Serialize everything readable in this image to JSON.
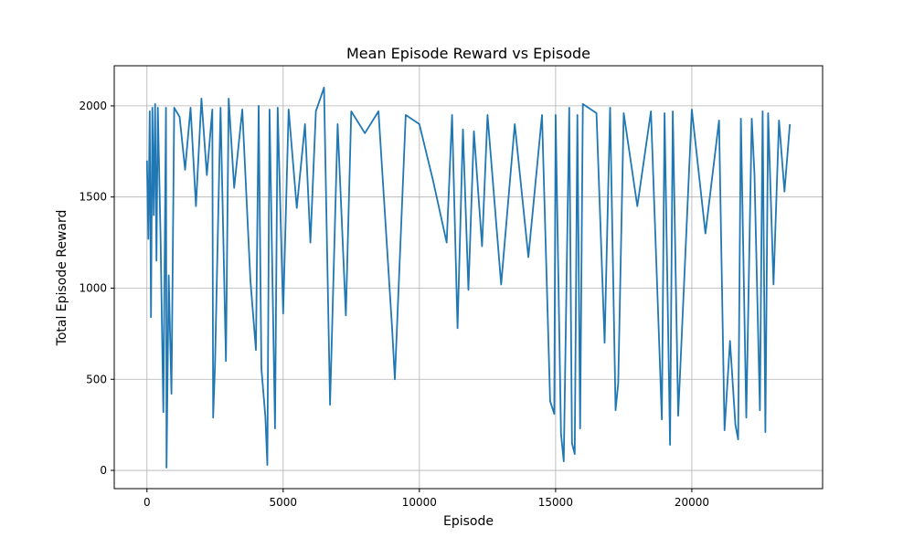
{
  "chart_data": {
    "type": "line",
    "title": "Mean Episode Reward vs Episode",
    "xlabel": "Episode",
    "ylabel": "Total Episode Reward",
    "xlim": [
      -1200,
      24800
    ],
    "ylim": [
      -100,
      2220
    ],
    "xticks": [
      0,
      5000,
      10000,
      15000,
      20000
    ],
    "yticks": [
      0,
      500,
      1000,
      1500,
      2000
    ],
    "grid": true,
    "color": "#1f77b4",
    "series": [
      {
        "x": [
          0,
          50,
          100,
          150,
          200,
          250,
          300,
          350,
          400,
          500,
          600,
          700,
          720,
          800,
          900,
          1000,
          1200,
          1400,
          1600,
          1800,
          2000,
          2200,
          2400,
          2430,
          2500,
          2700,
          2900,
          3000,
          3200,
          3500,
          3800,
          4000,
          4100,
          4200,
          4350,
          4420,
          4500,
          4700,
          4800,
          5000,
          5200,
          5500,
          5800,
          6000,
          6200,
          6500,
          6720,
          7000,
          7300,
          7500,
          8000,
          8500,
          9000,
          9100,
          9500,
          10000,
          10500,
          11000,
          11200,
          11400,
          11600,
          11800,
          12000,
          12300,
          12500,
          13000,
          13500,
          14000,
          14500,
          14800,
          14950,
          15000,
          15200,
          15300,
          15500,
          15600,
          15700,
          15800,
          15900,
          16000,
          16500,
          16800,
          17000,
          17200,
          17300,
          17500,
          18000,
          18500,
          18800,
          18900,
          19000,
          19200,
          19300,
          19500,
          20000,
          20500,
          21000,
          21200,
          21400,
          21600,
          21700,
          21800,
          22000,
          22200,
          22300,
          22500,
          22600,
          22700,
          22800,
          23000,
          23200,
          23400,
          23600
        ],
        "y": [
          1700,
          1270,
          1970,
          840,
          1990,
          1400,
          2010,
          1150,
          1990,
          1270,
          320,
          1990,
          15,
          1070,
          420,
          1990,
          1940,
          1650,
          1990,
          1450,
          2040,
          1620,
          1980,
          290,
          590,
          1990,
          600,
          2040,
          1550,
          1980,
          1040,
          660,
          2000,
          560,
          290,
          30,
          1980,
          230,
          1990,
          860,
          1980,
          1440,
          1900,
          1250,
          1970,
          2100,
          360,
          1900,
          850,
          1970,
          1850,
          1970,
          780,
          500,
          1950,
          1900,
          1590,
          1250,
          1950,
          780,
          1870,
          990,
          1860,
          1230,
          1950,
          1020,
          1900,
          1170,
          1950,
          380,
          310,
          1950,
          200,
          50,
          1990,
          150,
          90,
          1950,
          230,
          2010,
          1960,
          700,
          1990,
          330,
          480,
          1960,
          1450,
          1970,
          700,
          280,
          1960,
          140,
          1970,
          300,
          1980,
          1300,
          1920,
          220,
          710,
          250,
          170,
          1930,
          290,
          1930,
          1620,
          330,
          1970,
          210,
          1960,
          1020,
          1920,
          1530,
          1900
        ]
      }
    ]
  }
}
